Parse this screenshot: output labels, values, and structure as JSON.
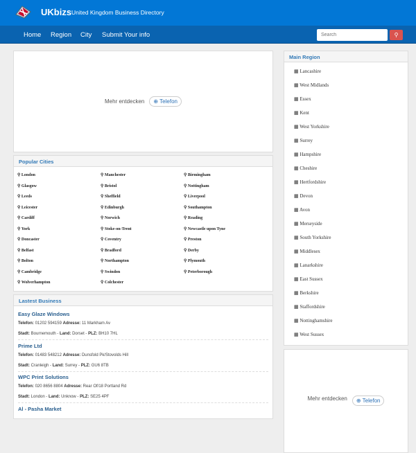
{
  "header": {
    "brand": "UKbizs",
    "tagline": "United Kingdom Business Directory"
  },
  "nav": {
    "items": [
      "Home",
      "Region",
      "City",
      "Submit Your info"
    ],
    "search_placeholder": "Search",
    "search_icon": "search-icon"
  },
  "ad": {
    "text": "Mehr entdecken",
    "button": "Telefon"
  },
  "popular": {
    "title": "Popular Cities",
    "cities": [
      "London",
      "Manchester",
      "Birmingham",
      "Glasgow",
      "Bristol",
      "Nottingham",
      "Leeds",
      "Sheffield",
      "Liverpool",
      "Leicester",
      "Edinburgh",
      "Southampton",
      "Cardiff",
      "Norwich",
      "Reading",
      "York",
      "Stoke-on-Trent",
      "Newcastle upon Tyne",
      "Doncaster",
      "Coventry",
      "Preston",
      "Belfast",
      "Bradford",
      "Derby",
      "Bolton",
      "Northampton",
      "Plymouth",
      "Cambridge",
      "Swindon",
      "Peterborough",
      "Wolverhampton",
      "Colchester"
    ]
  },
  "latest": {
    "title": "Lastest Business",
    "labels": {
      "phone": "Telefon:",
      "address": "Adresse:",
      "city": "Stadt:",
      "land": "Land:",
      "plz": "PLZ:"
    },
    "items": [
      {
        "name": "Easy Glaze Windows",
        "phone": "01202 594159",
        "address": "11 Markham Av",
        "city": "Bournemouth",
        "land": "Dorset",
        "plz": "BH10 7HL"
      },
      {
        "name": "Prime Ltd",
        "phone": "01483 548212",
        "address": "Dunsfold Pk/Stovolds Hill",
        "city": "Cranleigh",
        "land": "Surrey",
        "plz": "GU6 8TB"
      },
      {
        "name": "WPC Print Solutions",
        "phone": "020 8656 8804",
        "address": "Rear Of/18 Portland Rd",
        "city": "London",
        "land": "Unknow",
        "plz": "SE25 4PF"
      },
      {
        "name": "Al - Pasha Market"
      }
    ]
  },
  "regions": {
    "title": "Main Region",
    "items": [
      "Lancashire",
      "West Midlands",
      "Essex",
      "Kent",
      "West Yorkshire",
      "Surrey",
      "Hampshire",
      "Cheshire",
      "Hertfordshire",
      "Devon",
      "Avon",
      "Merseyside",
      "South Yorkshire",
      "Middlesex",
      "Lanarkshire",
      "East Sussex",
      "Berkshire",
      "Staffordshire",
      "Nottinghamshire",
      "West Sussex"
    ]
  }
}
